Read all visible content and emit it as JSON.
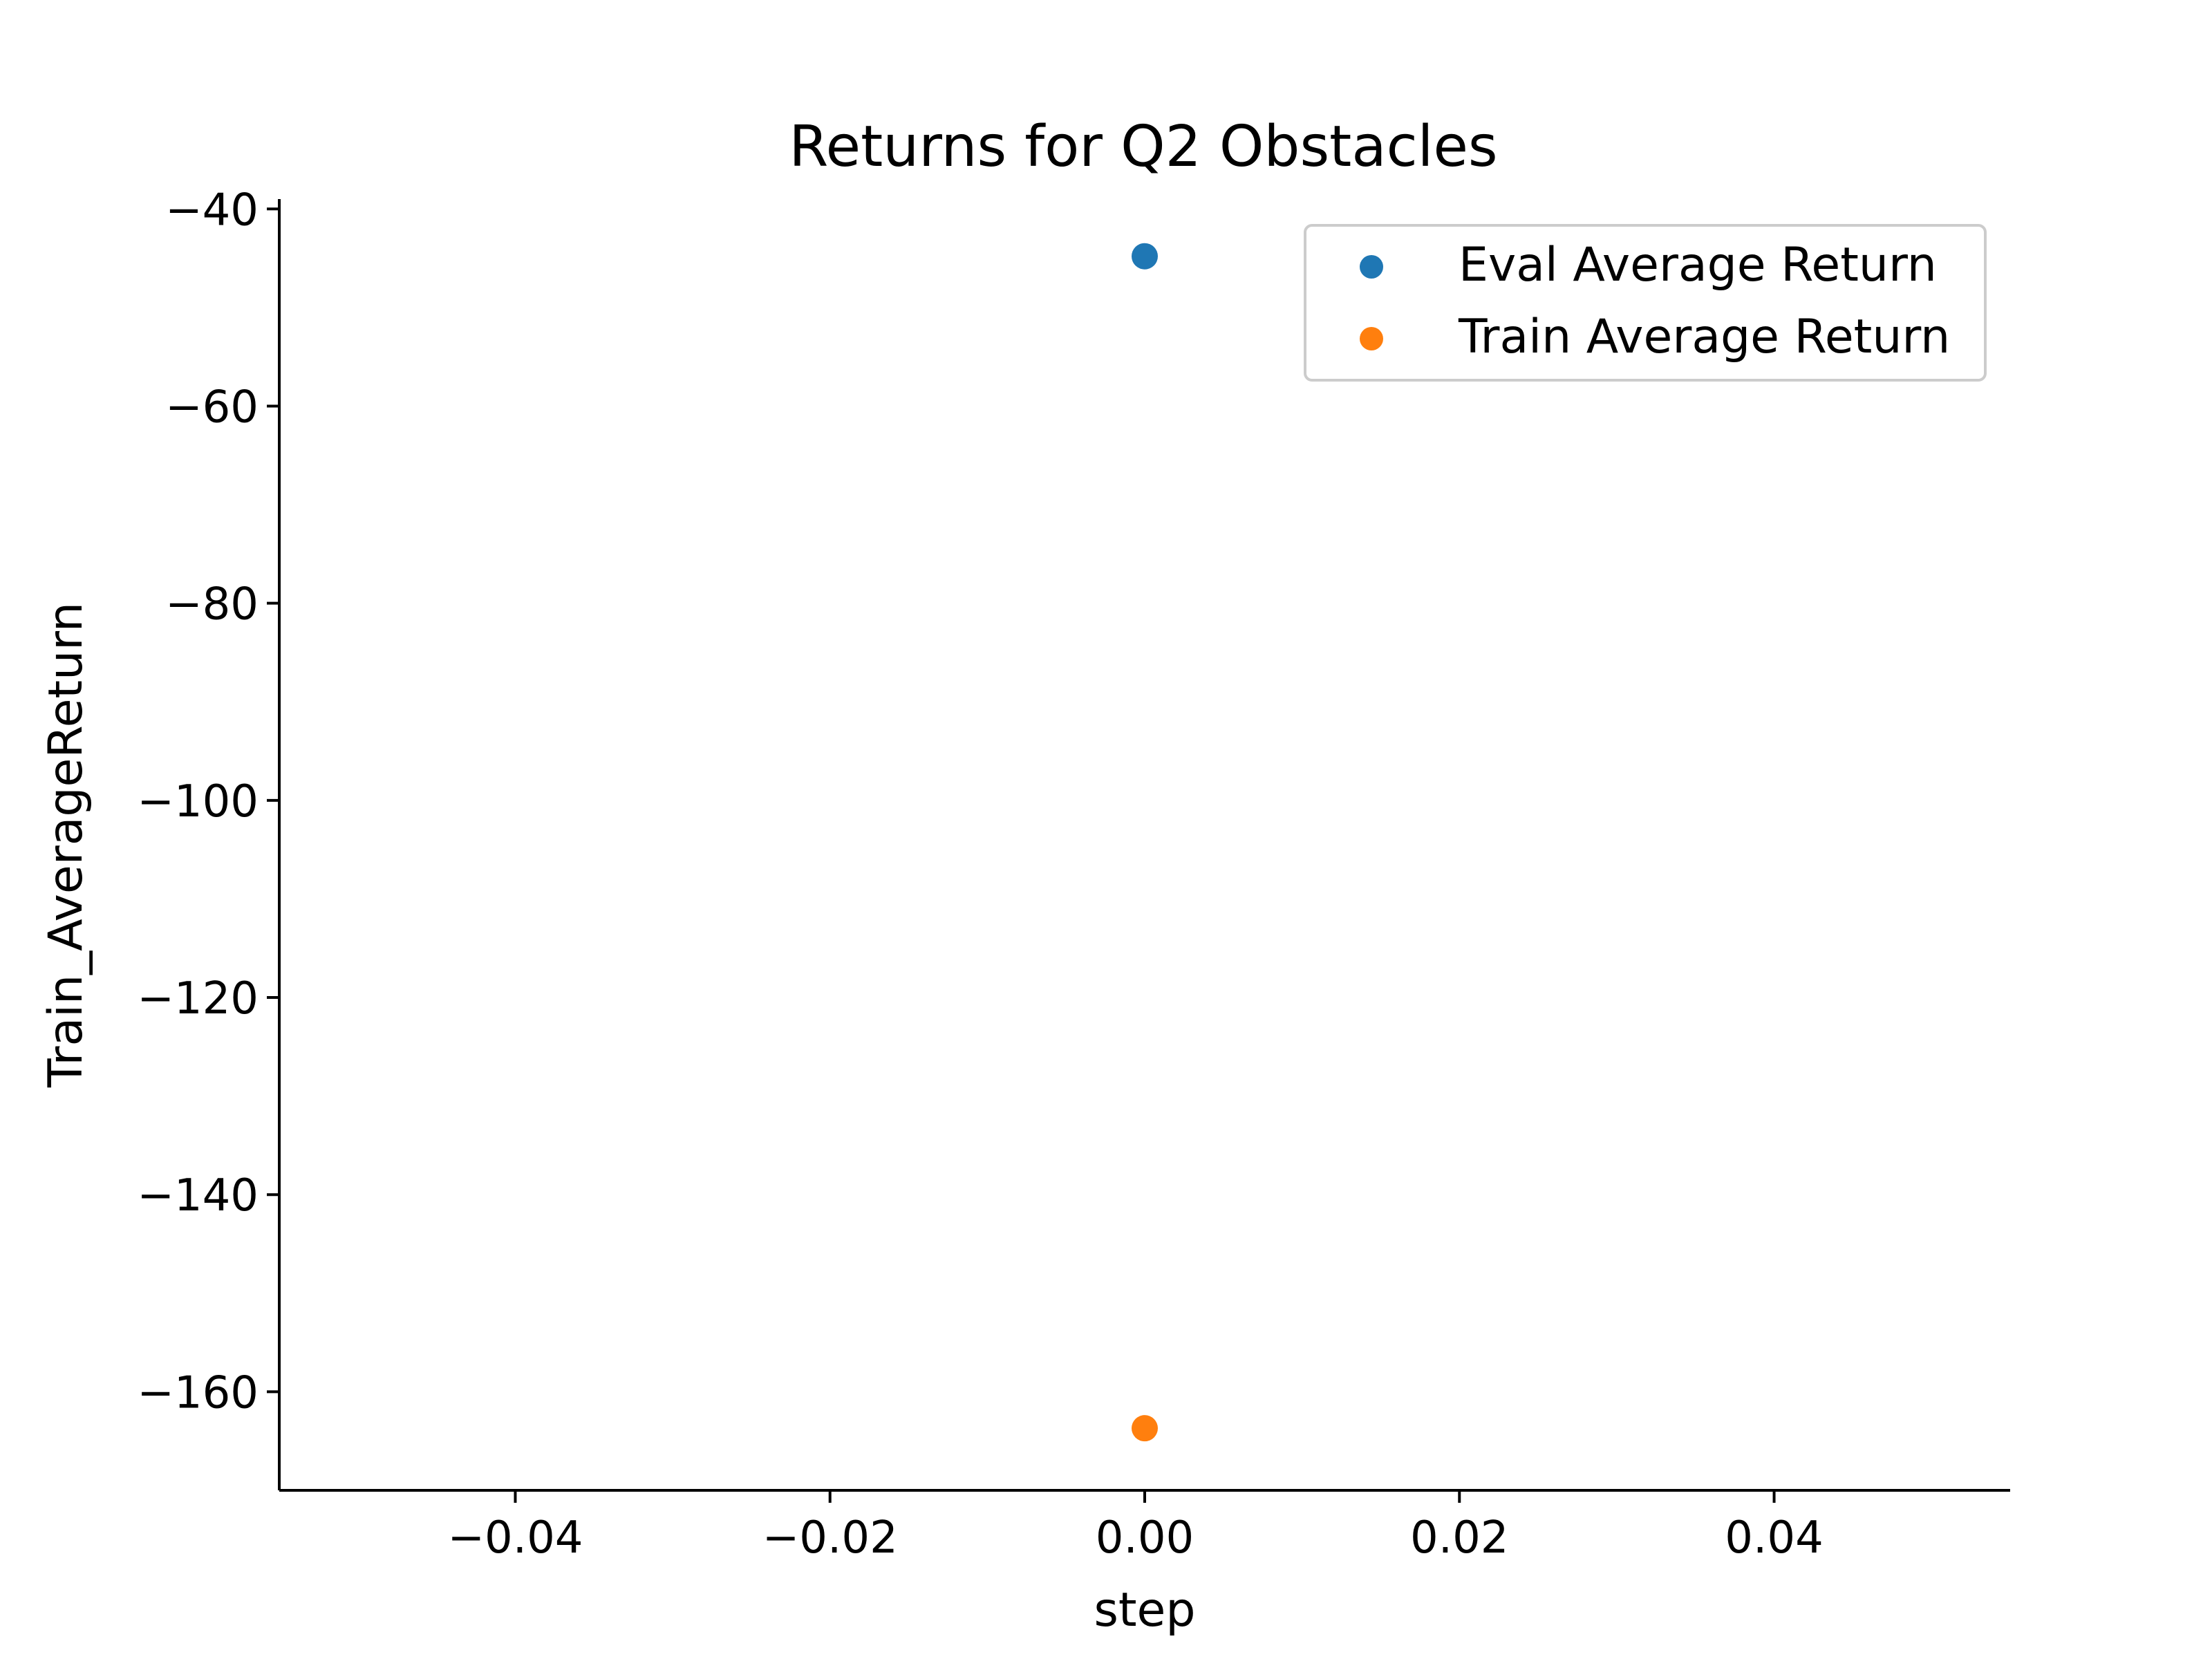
{
  "chart_data": {
    "type": "scatter",
    "title": "Returns for Q2 Obstacles",
    "xlabel": "step",
    "ylabel": "Train_AverageReturn",
    "xlim": [
      -0.055,
      0.055
    ],
    "ylim": [
      -170,
      -39
    ],
    "xticks": [
      -0.04,
      -0.02,
      0.0,
      0.02,
      0.04
    ],
    "xtick_labels": [
      "−0.04",
      "−0.02",
      "0.00",
      "0.02",
      "0.04"
    ],
    "yticks": [
      -40,
      -60,
      -80,
      -100,
      -120,
      -140,
      -160
    ],
    "ytick_labels": [
      "−40",
      "−60",
      "−80",
      "−100",
      "−120",
      "−140",
      "−160"
    ],
    "grid": false,
    "legend_position": "top-right",
    "series": [
      {
        "name": "Eval Average Return",
        "color": "#1f77b4",
        "points": [
          {
            "x": 0.0,
            "y": -44.8
          }
        ]
      },
      {
        "name": "Train Average Return",
        "color": "#ff7f0e",
        "points": [
          {
            "x": 0.0,
            "y": -163.7
          }
        ]
      }
    ]
  }
}
